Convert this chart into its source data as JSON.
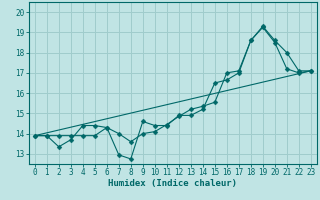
{
  "bg_color": "#c0e4e4",
  "grid_color": "#a0cccc",
  "line_color": "#006868",
  "xlabel": "Humidex (Indice chaleur)",
  "xlim": [
    -0.5,
    23.5
  ],
  "ylim": [
    12.5,
    20.5
  ],
  "xticks": [
    0,
    1,
    2,
    3,
    4,
    5,
    6,
    7,
    8,
    9,
    10,
    11,
    12,
    13,
    14,
    15,
    16,
    17,
    18,
    19,
    20,
    21,
    22,
    23
  ],
  "yticks": [
    13,
    14,
    15,
    16,
    17,
    18,
    19,
    20
  ],
  "line1_x": [
    0,
    1,
    2,
    3,
    4,
    5,
    6,
    7,
    8,
    9,
    10,
    11,
    12,
    13,
    14,
    15,
    16,
    17,
    18,
    19,
    20,
    21,
    22,
    23
  ],
  "line1_y": [
    13.9,
    13.9,
    13.35,
    13.7,
    14.4,
    14.4,
    14.3,
    12.95,
    12.75,
    14.6,
    14.4,
    14.4,
    14.9,
    14.9,
    15.2,
    16.5,
    16.65,
    17.0,
    18.6,
    19.3,
    18.6,
    18.0,
    17.1,
    17.1
  ],
  "line2_x": [
    0,
    1,
    2,
    3,
    4,
    5,
    6,
    7,
    8,
    9,
    10,
    11,
    12,
    13,
    14,
    15,
    16,
    17,
    18,
    19,
    20,
    21,
    22,
    23
  ],
  "line2_y": [
    13.9,
    13.9,
    13.9,
    13.9,
    13.9,
    13.9,
    14.3,
    14.0,
    13.6,
    14.0,
    14.1,
    14.45,
    14.85,
    15.2,
    15.35,
    15.55,
    17.0,
    17.1,
    18.6,
    19.25,
    18.5,
    17.2,
    17.0,
    17.1
  ],
  "line3_x": [
    0,
    23
  ],
  "line3_y": [
    13.9,
    17.1
  ],
  "marker": "D",
  "markersize": 2.5,
  "linewidth": 0.8,
  "tick_fontsize": 5.5,
  "xlabel_fontsize": 6.5
}
